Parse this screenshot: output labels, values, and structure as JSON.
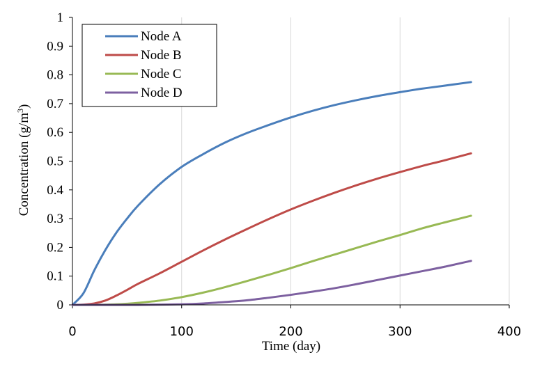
{
  "chart_data": {
    "type": "line",
    "xlabel": "Time (day)",
    "ylabel": "Concentration (g/m",
    "ylabel_sup": "3",
    "ylabel_end": ")",
    "xlim": [
      0,
      400
    ],
    "ylim": [
      0,
      1
    ],
    "x_ticks": [
      "0",
      "100",
      "200",
      "300",
      "400"
    ],
    "y_ticks": [
      "0",
      "0.1",
      "0.2",
      "0.3",
      "0.4",
      "0.5",
      "0.6",
      "0.7",
      "0.8",
      "0.9",
      "1"
    ],
    "grid": "vertical",
    "legend_position": "top-left",
    "x": [
      0,
      10,
      20,
      30,
      40,
      50,
      60,
      80,
      100,
      120,
      140,
      160,
      180,
      200,
      220,
      240,
      260,
      280,
      300,
      320,
      340,
      365
    ],
    "series": [
      {
        "name": "Node A",
        "color": "#4a7ebb",
        "values": [
          0.0,
          0.04,
          0.12,
          0.19,
          0.25,
          0.3,
          0.345,
          0.42,
          0.48,
          0.525,
          0.565,
          0.598,
          0.626,
          0.652,
          0.675,
          0.695,
          0.712,
          0.727,
          0.74,
          0.752,
          0.762,
          0.775
        ]
      },
      {
        "name": "Node B",
        "color": "#be4b48",
        "values": [
          0.0,
          0.001,
          0.005,
          0.015,
          0.032,
          0.052,
          0.073,
          0.11,
          0.15,
          0.19,
          0.228,
          0.264,
          0.299,
          0.332,
          0.362,
          0.39,
          0.416,
          0.44,
          0.462,
          0.483,
          0.502,
          0.527
        ]
      },
      {
        "name": "Node C",
        "color": "#98b954",
        "values": [
          0.0,
          0.0,
          0.0,
          0.001,
          0.002,
          0.004,
          0.007,
          0.015,
          0.027,
          0.043,
          0.062,
          0.083,
          0.105,
          0.128,
          0.152,
          0.175,
          0.198,
          0.221,
          0.243,
          0.266,
          0.286,
          0.31
        ]
      },
      {
        "name": "Node D",
        "color": "#7d60a0",
        "values": [
          0.0,
          0.0,
          0.0,
          0.0,
          0.0,
          0.0,
          0.0,
          0.001,
          0.002,
          0.005,
          0.01,
          0.016,
          0.025,
          0.035,
          0.046,
          0.058,
          0.072,
          0.087,
          0.102,
          0.117,
          0.132,
          0.153
        ]
      }
    ]
  }
}
